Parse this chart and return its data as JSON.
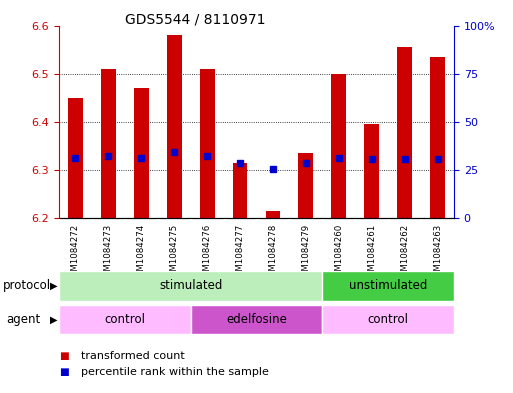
{
  "title": "GDS5544 / 8110971",
  "samples": [
    "GSM1084272",
    "GSM1084273",
    "GSM1084274",
    "GSM1084275",
    "GSM1084276",
    "GSM1084277",
    "GSM1084278",
    "GSM1084279",
    "GSM1084260",
    "GSM1084261",
    "GSM1084262",
    "GSM1084263"
  ],
  "transformed_count": [
    6.45,
    6.51,
    6.47,
    6.58,
    6.51,
    6.315,
    6.215,
    6.335,
    6.5,
    6.395,
    6.555,
    6.535
  ],
  "percentile_rank": [
    6.325,
    6.328,
    6.325,
    6.338,
    6.328,
    6.315,
    6.302,
    6.315,
    6.325,
    6.322,
    6.322,
    6.322
  ],
  "bar_bottom": 6.2,
  "ylim": [
    6.2,
    6.6
  ],
  "yticks": [
    6.2,
    6.3,
    6.4,
    6.5,
    6.6
  ],
  "right_yticks": [
    0,
    25,
    50,
    75,
    100
  ],
  "right_ytick_positions": [
    6.2,
    6.3,
    6.4,
    6.5,
    6.6
  ],
  "bar_color": "#cc0000",
  "percentile_color": "#0000cc",
  "background_color": "#ffffff",
  "plot_bg_color": "#ffffff",
  "grid_color": "#000000",
  "left_axis_color": "#cc0000",
  "right_axis_color": "#0000cc",
  "protocol_groups": [
    {
      "label": "stimulated",
      "start": 0,
      "end": 7,
      "color": "#bbeebb"
    },
    {
      "label": "unstimulated",
      "start": 8,
      "end": 11,
      "color": "#44cc44"
    }
  ],
  "agent_groups": [
    {
      "label": "control",
      "start": 0,
      "end": 3,
      "color": "#ffbbff"
    },
    {
      "label": "edelfosine",
      "start": 4,
      "end": 7,
      "color": "#cc55cc"
    },
    {
      "label": "control",
      "start": 8,
      "end": 11,
      "color": "#ffbbff"
    }
  ],
  "legend_items": [
    {
      "label": "transformed count",
      "color": "#cc0000"
    },
    {
      "label": "percentile rank within the sample",
      "color": "#0000cc"
    }
  ],
  "protocol_label": "protocol",
  "agent_label": "agent",
  "sample_bg_color": "#cccccc",
  "title_fontsize": 10,
  "tick_fontsize": 8,
  "label_fontsize": 8.5
}
